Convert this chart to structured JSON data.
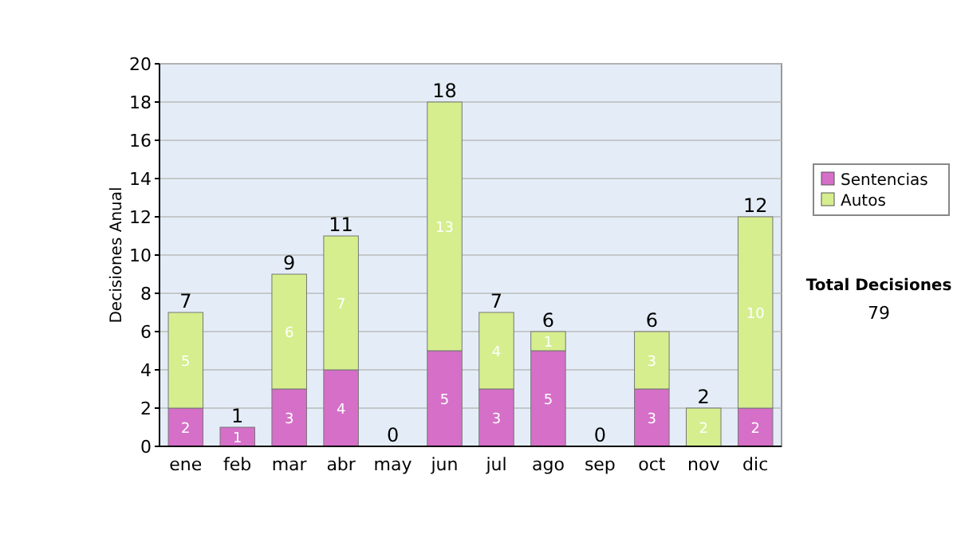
{
  "chart_data": {
    "type": "bar",
    "stacked": true,
    "ylabel": "Decisiones Anual",
    "categories": [
      "ene",
      "feb",
      "mar",
      "abr",
      "may",
      "jun",
      "jul",
      "ago",
      "sep",
      "oct",
      "nov",
      "dic"
    ],
    "series": [
      {
        "name": "Sentencias",
        "color": "#d56fc8",
        "values": [
          2,
          1,
          3,
          4,
          0,
          5,
          3,
          5,
          0,
          3,
          0,
          2
        ],
        "value_labels": [
          "2",
          "1",
          "3",
          "4",
          null,
          "5",
          "3",
          "5",
          null,
          "3",
          null,
          "2"
        ]
      },
      {
        "name": "Autos",
        "color": "#d6ee8e",
        "values": [
          5,
          0,
          6,
          7,
          0,
          13,
          4,
          1,
          0,
          3,
          2,
          10
        ],
        "value_labels": [
          "5",
          null,
          "6",
          "7",
          null,
          "13",
          "4",
          "1",
          null,
          "3",
          "2",
          "10"
        ]
      }
    ],
    "totals": [
      "7",
      "1",
      "9",
      "11",
      "0",
      "18",
      "7",
      "6",
      "0",
      "6",
      "2",
      "12"
    ],
    "ylim": [
      0,
      20
    ],
    "yticks": [
      0,
      2,
      4,
      6,
      8,
      10,
      12,
      14,
      16,
      18,
      20
    ],
    "grid": "y",
    "legend": "right",
    "annotations": [
      "Total Decisiones",
      "79"
    ]
  }
}
